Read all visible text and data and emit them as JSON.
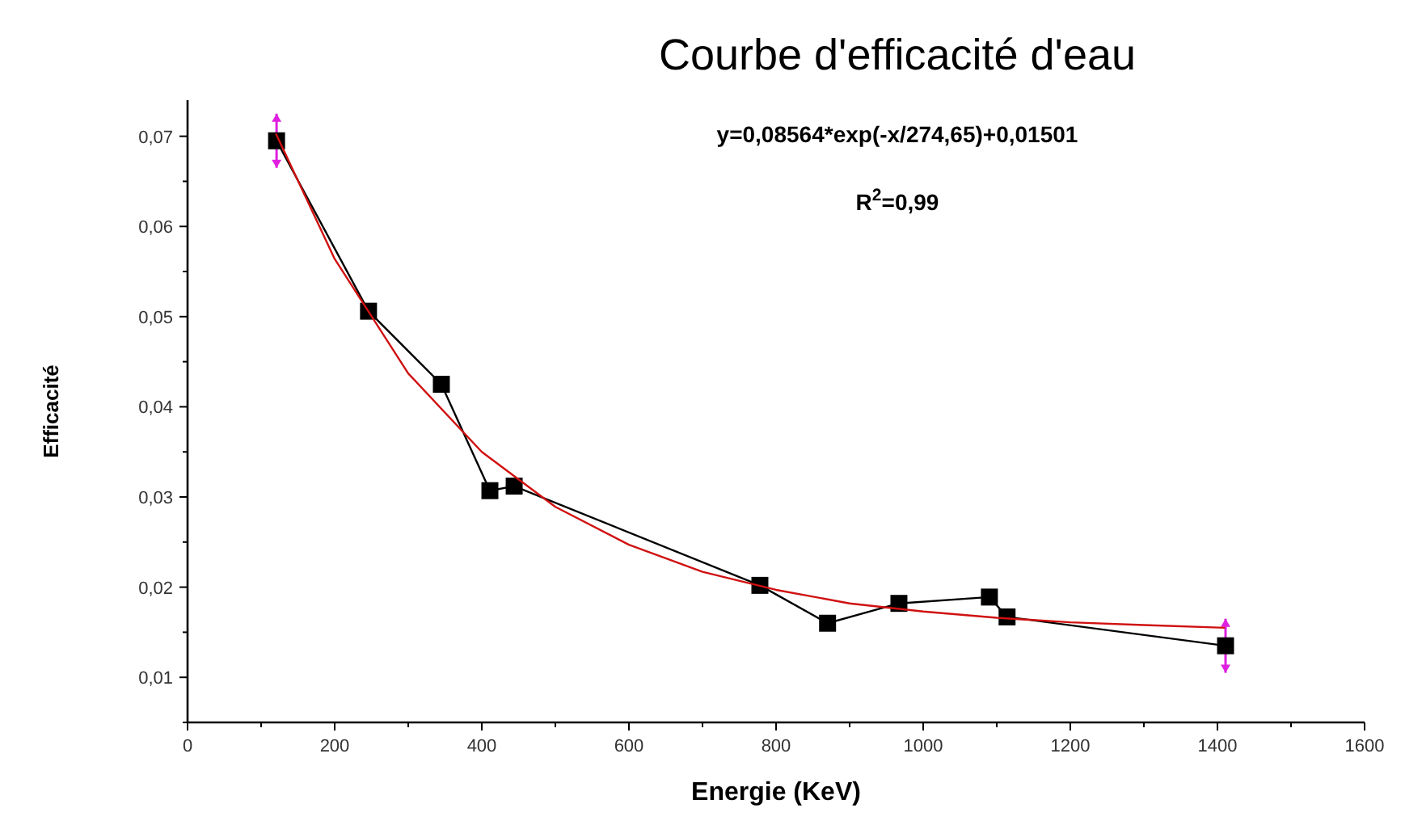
{
  "chart_data": {
    "type": "line",
    "title": "Courbe d'efficacité d'eau",
    "xlabel": "Energie (KeV)",
    "ylabel": "Efficacité",
    "annotations": [
      "y=0,08564*exp(-x/274,65)+0,01501",
      "R$^{2}$=0,99"
    ],
    "xlim": [
      0,
      1600
    ],
    "ylim": [
      0.005,
      0.074
    ],
    "xticks": [
      0,
      {
        "value": 100,
        "label": null
      },
      200,
      {
        "value": 300,
        "label": null
      },
      400,
      {
        "value": 500,
        "label": null
      },
      600,
      {
        "value": 700,
        "label": null
      },
      800,
      {
        "value": 900,
        "label": null
      },
      1000,
      {
        "value": 1100,
        "label": null
      },
      1200,
      {
        "value": 1300,
        "label": null
      },
      1400,
      {
        "value": 1500,
        "label": null
      },
      1600
    ],
    "yticks": [
      {
        "value": 0.005,
        "label": null
      },
      {
        "value": 0.01,
        "label": "0,01"
      },
      {
        "value": 0.015,
        "label": null
      },
      {
        "value": 0.02,
        "label": "0,02"
      },
      {
        "value": 0.025,
        "label": null
      },
      {
        "value": 0.03,
        "label": "0,03"
      },
      {
        "value": 0.035,
        "label": null
      },
      {
        "value": 0.04,
        "label": "0,04"
      },
      {
        "value": 0.045,
        "label": null
      },
      {
        "value": 0.05,
        "label": "0,05"
      },
      {
        "value": 0.055,
        "label": null
      },
      {
        "value": 0.06,
        "label": "0,06"
      },
      {
        "value": 0.065,
        "label": null
      },
      {
        "value": 0.07,
        "label": "0,07"
      }
    ],
    "grid": false,
    "series": [
      {
        "color": "#000000",
        "marker": "square",
        "x": [
          121,
          246,
          345,
          411,
          444,
          778,
          870,
          967,
          1090,
          1114,
          1411
        ],
        "values": [
          0.0695,
          0.0506,
          0.0425,
          0.0307,
          0.0312,
          0.0202,
          0.016,
          0.0182,
          0.0189,
          0.0167,
          0.0135
        ],
        "errors": [
          0.003,
          null,
          null,
          null,
          null,
          null,
          null,
          null,
          null,
          null,
          0.003
        ]
      },
      {
        "color": "#d01010",
        "marker": "none",
        "x": [
          120,
          200,
          300,
          400,
          500,
          600,
          700,
          800,
          900,
          1000,
          1100,
          1200,
          1300,
          1410
        ],
        "values": [
          0.0703,
          0.0564,
          0.0437,
          0.035,
          0.0289,
          0.0247,
          0.0217,
          0.0197,
          0.0182,
          0.0173,
          0.0166,
          0.0161,
          0.0158,
          0.0155
        ]
      }
    ]
  }
}
